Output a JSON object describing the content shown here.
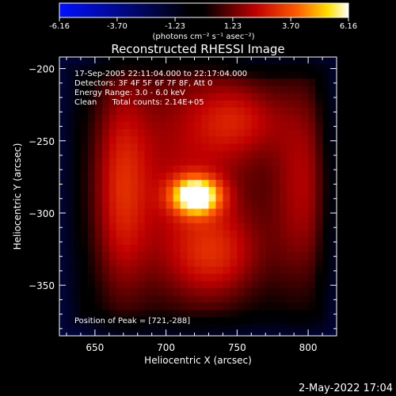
{
  "colorbar": {
    "ticks": [
      "-6.16",
      "-3.70",
      "-1.23",
      "1.23",
      "3.70",
      "6.16"
    ],
    "tick_values": [
      -6.16,
      -3.7,
      -1.23,
      1.23,
      3.7,
      6.16
    ],
    "range": [
      -6.16,
      6.16
    ],
    "unit_label": "(photons cm⁻² s⁻¹ asec⁻²)",
    "colors": [
      "#0010ff",
      "#000000",
      "#c00000",
      "#ff5a00",
      "#ffe000",
      "#ffffff"
    ]
  },
  "chart_data": {
    "type": "heatmap",
    "title": "Reconstructed RHESSI Image",
    "xlabel": "Heliocentric X (arcsec)",
    "ylabel": "Heliocentric Y (arcsec)",
    "xlim": [
      625,
      820
    ],
    "ylim": [
      -385,
      -192
    ],
    "xticks": [
      650,
      700,
      750,
      800
    ],
    "yticks": [
      -200,
      -250,
      -300,
      -350
    ],
    "xtick_labels": [
      "650",
      "700",
      "750",
      "800"
    ],
    "ytick_labels": [
      "−200",
      "−250",
      "−300",
      "−350"
    ],
    "annotations": [
      "17-Sep-2005 22:11:04.000 to 22:17:04.000",
      "Detectors: 3F 4F 5F 6F 7F 8F, Att 0",
      "Energy Range: 3.0 - 6.0 keV",
      "Clean      Total counts: 2.14E+05"
    ],
    "peak_label": "Position of Peak = [721,-288]",
    "peak": [
      721,
      -288
    ],
    "sources": [
      {
        "x": 721,
        "y": -288,
        "sx": 12,
        "sy": 9,
        "amp": 6.16
      },
      {
        "x": 715,
        "y": -272,
        "sx": 42,
        "sy": 70,
        "amp": 2.6
      },
      {
        "x": 668,
        "y": -285,
        "sx": 14,
        "sy": 55,
        "amp": 2.4
      },
      {
        "x": 797,
        "y": -282,
        "sx": 16,
        "sy": 55,
        "amp": 2.3
      },
      {
        "x": 752,
        "y": -235,
        "sx": 22,
        "sy": 18,
        "amp": 1.9
      },
      {
        "x": 735,
        "y": -330,
        "sx": 24,
        "sy": 22,
        "amp": 2.1
      }
    ],
    "background": -0.9
  },
  "timestamp": "2-May-2022 17:04"
}
